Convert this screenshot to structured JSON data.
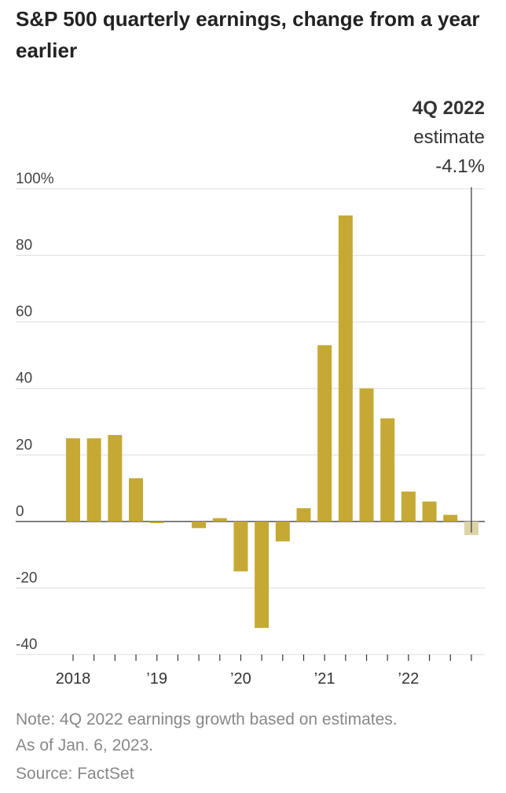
{
  "chart_data": {
    "type": "bar",
    "title": "S&P 500 quarterly earnings, change from a year earlier",
    "categories": [
      "2018",
      null,
      null,
      null,
      "’19",
      null,
      null,
      null,
      "’20",
      null,
      null,
      null,
      "’21",
      null,
      null,
      null,
      "’22",
      null,
      null,
      null
    ],
    "values": [
      25,
      25,
      26,
      13,
      -0.5,
      0,
      -2,
      1,
      -15,
      -32,
      -6,
      4,
      53,
      92,
      40,
      31,
      9,
      6,
      2,
      -4.1
    ],
    "value_labels": [
      null,
      null,
      null,
      null,
      null,
      null,
      null,
      null,
      null,
      null,
      null,
      null,
      null,
      null,
      null,
      null,
      null,
      null,
      null,
      "-4.1%"
    ],
    "colors": [
      "#c5a934",
      "#c5a934",
      "#c5a934",
      "#c5a934",
      "#c5a934",
      "#c5a934",
      "#c5a934",
      "#c5a934",
      "#c5a934",
      "#c5a934",
      "#c5a934",
      "#c5a934",
      "#c5a934",
      "#c5a934",
      "#c5a934",
      "#c5a934",
      "#c5a934",
      "#c5a934",
      "#c5a934",
      "#ddd4a6"
    ],
    "ylim": [
      -40,
      100
    ],
    "yticks": [
      {
        "value": 100,
        "label": "100%"
      },
      80,
      60,
      40,
      20,
      0,
      -20,
      -40
    ],
    "grid": true,
    "annotation": {
      "title": "4Q 2022",
      "text": "estimate"
    },
    "notes": [
      "Note: 4Q 2022 earnings growth based on estimates.",
      "As of Jan. 6, 2023.",
      "Source: FactSet"
    ]
  }
}
